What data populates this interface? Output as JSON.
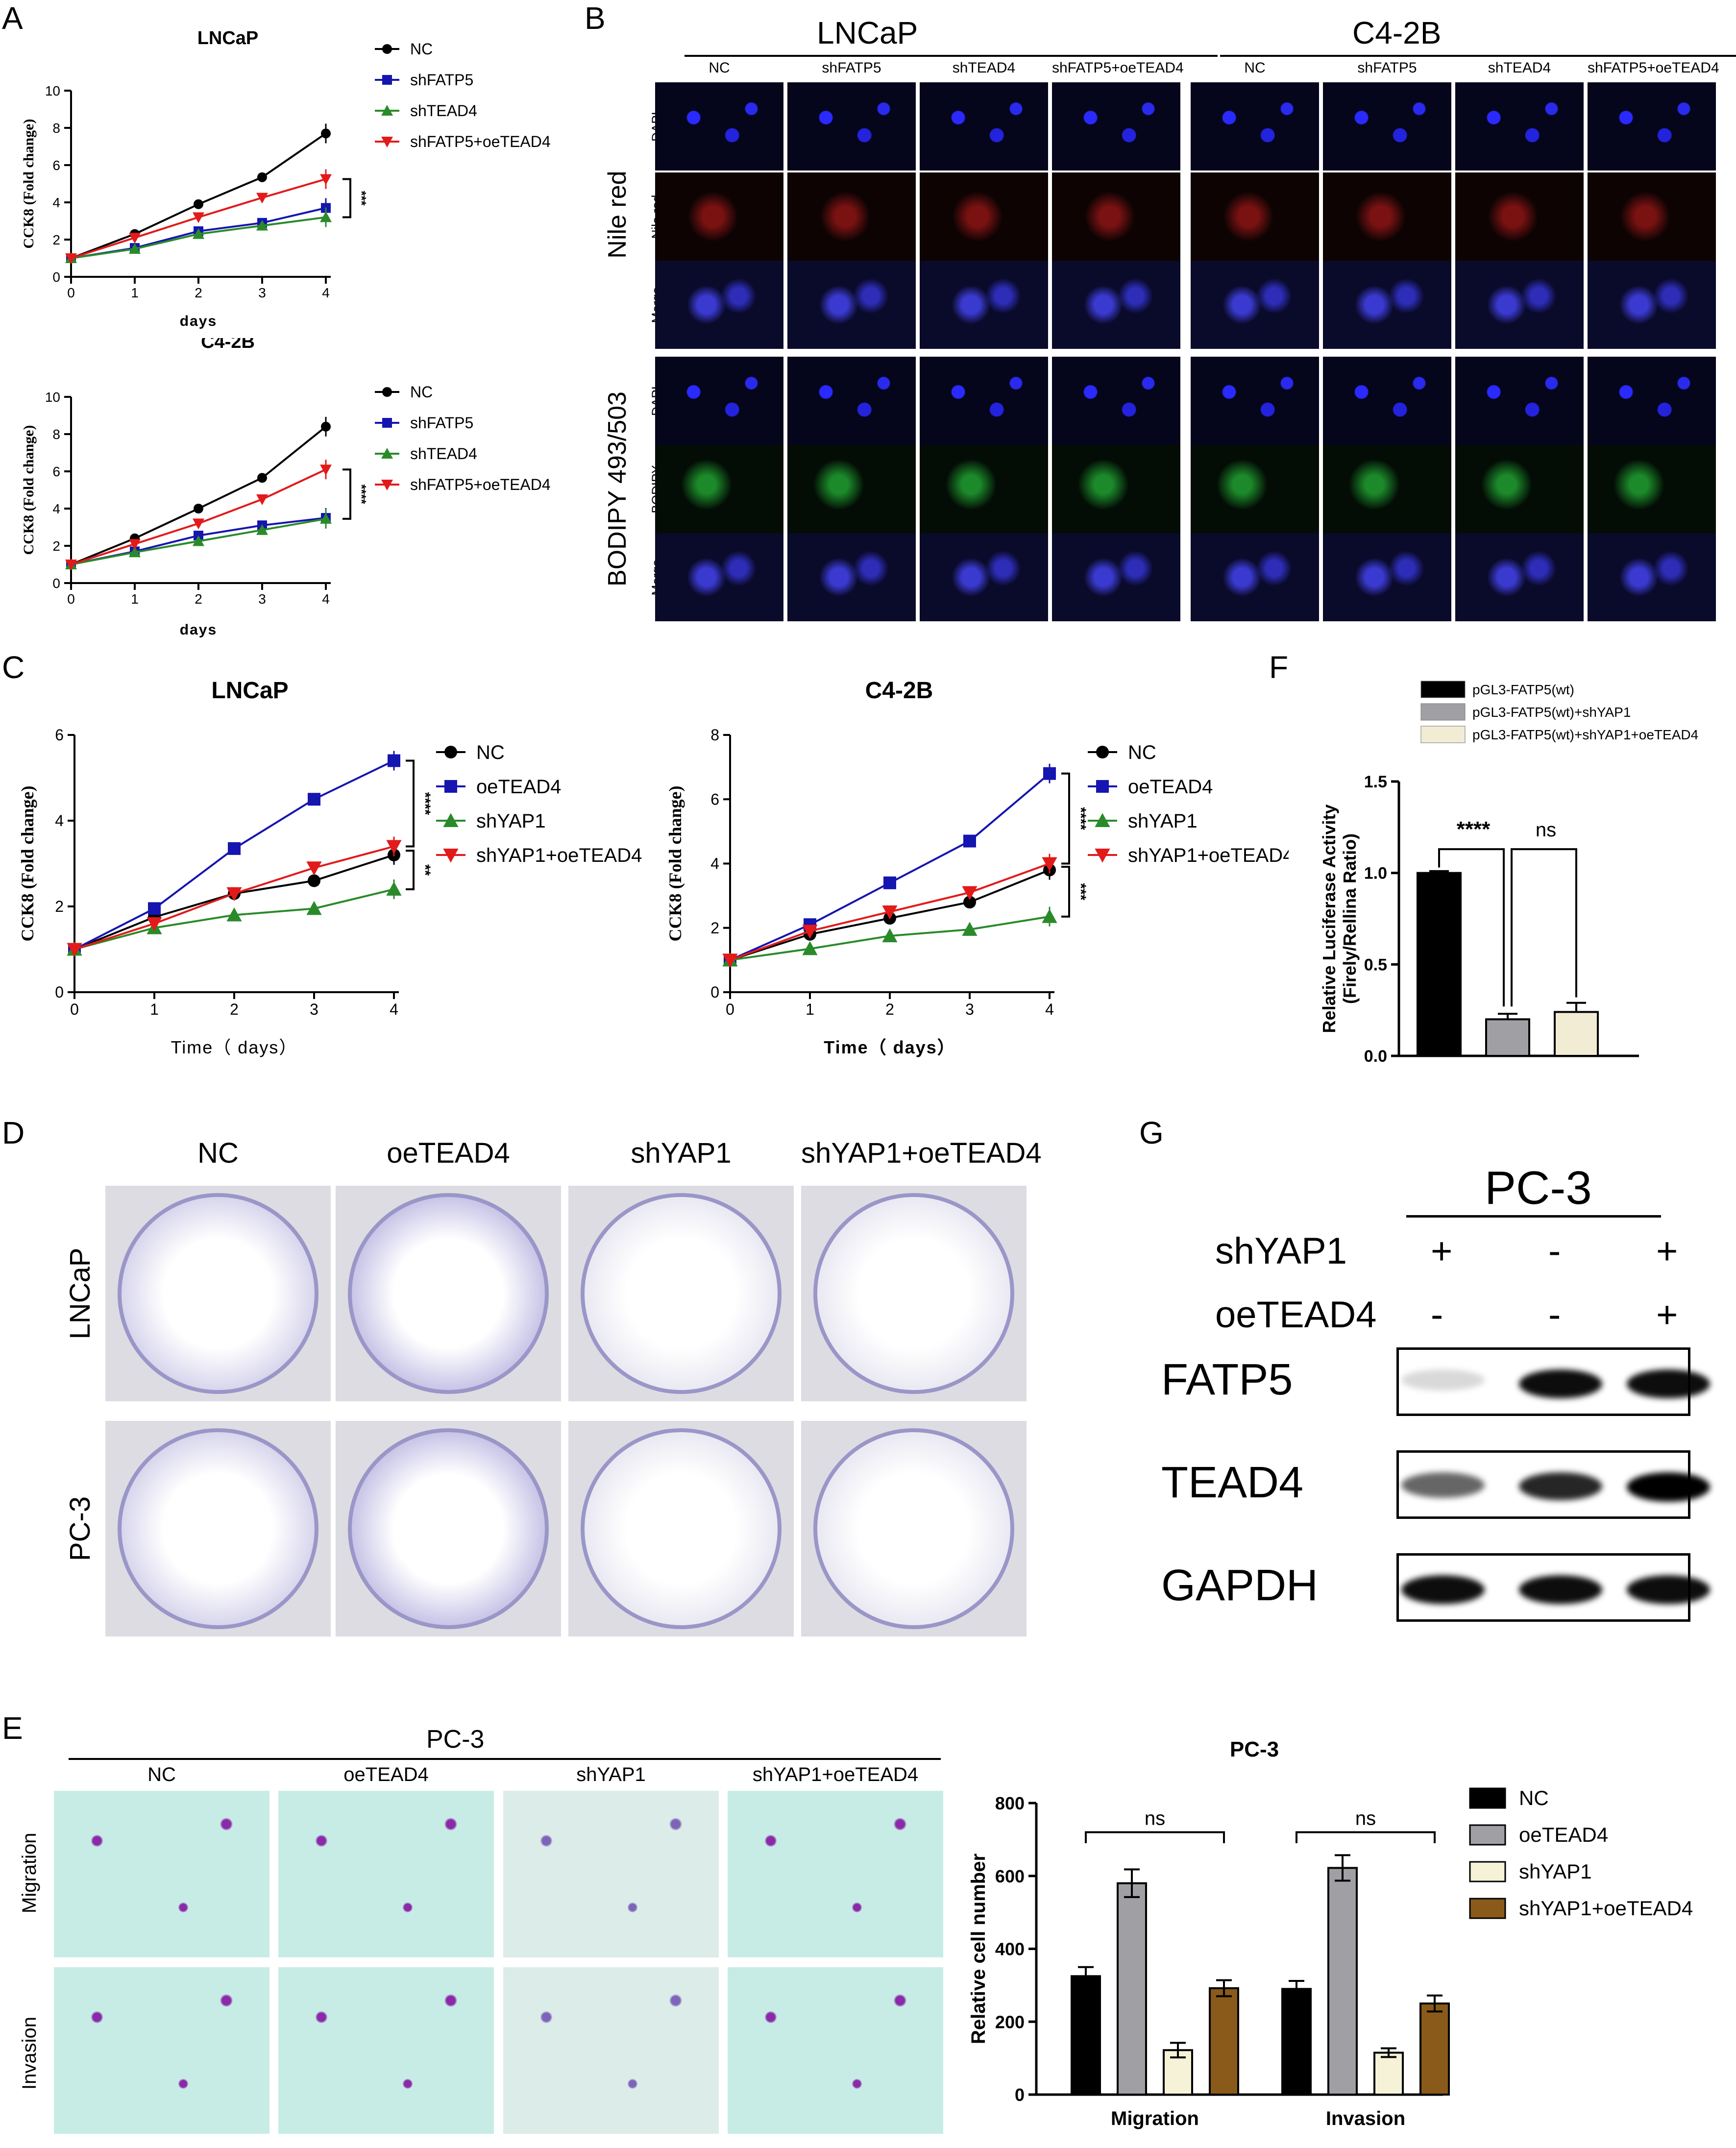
{
  "panels": {
    "A": "A",
    "B": "B",
    "C": "C",
    "D": "D",
    "E": "E",
    "F": "F",
    "G": "G"
  },
  "panelA": {
    "charts": [
      {
        "title": "LNCaP",
        "xlabel": "days",
        "ylabel": "CCK8 (Fold change)",
        "ylim": [
          0,
          10
        ],
        "yticks": [
          "0",
          "2",
          "4",
          "6",
          "8",
          "10"
        ],
        "xticks": [
          "0",
          "1",
          "2",
          "3",
          "4"
        ],
        "sig": "***",
        "series": [
          {
            "name": "NC",
            "color": "#000000",
            "marker": "circle",
            "values": [
              1,
              2.3,
              3.9,
              5.35,
              7.7
            ]
          },
          {
            "name": "shFATP5",
            "color": "#1515b0",
            "marker": "square",
            "values": [
              1,
              1.55,
              2.45,
              2.9,
              3.7
            ]
          },
          {
            "name": "shTEAD4",
            "color": "#2a8a2a",
            "marker": "triangle",
            "values": [
              1,
              1.5,
              2.3,
              2.75,
              3.2
            ]
          },
          {
            "name": "shFATP5+oeTEAD4",
            "color": "#e21a1a",
            "marker": "triangle-down",
            "values": [
              1,
              2.1,
              3.2,
              4.25,
              5.25
            ]
          }
        ]
      },
      {
        "title": "C4-2B",
        "xlabel": "days",
        "ylabel": "CCK8 (Fold change)",
        "ylim": [
          0,
          10
        ],
        "yticks": [
          "0",
          "2",
          "4",
          "6",
          "8",
          "10"
        ],
        "xticks": [
          "0",
          "1",
          "2",
          "3",
          "4"
        ],
        "sig": "****",
        "series": [
          {
            "name": "NC",
            "color": "#000000",
            "marker": "circle",
            "values": [
              1,
              2.4,
              4.0,
              5.65,
              8.4
            ]
          },
          {
            "name": "shFATP5",
            "color": "#1515b0",
            "marker": "square",
            "values": [
              1,
              1.7,
              2.55,
              3.1,
              3.5
            ]
          },
          {
            "name": "shTEAD4",
            "color": "#2a8a2a",
            "marker": "triangle",
            "values": [
              1,
              1.65,
              2.25,
              2.85,
              3.45
            ]
          },
          {
            "name": "shFATP5+oeTEAD4",
            "color": "#e21a1a",
            "marker": "triangle-down",
            "values": [
              1,
              2.1,
              3.2,
              4.5,
              6.1
            ]
          }
        ]
      }
    ]
  },
  "panelB": {
    "groups": [
      "LNCaP",
      "C4-2B"
    ],
    "columns": [
      "NC",
      "shFATP5",
      "shTEAD4",
      "shFATP5+oeTEAD4"
    ],
    "sections": [
      {
        "title": "Nile red",
        "rows": [
          "DAPI",
          "Nile red",
          "Merge"
        ]
      },
      {
        "title": "BODIPY 493/503",
        "rows": [
          "DAPI",
          "BODIPY",
          "Merge"
        ]
      }
    ]
  },
  "panelC": {
    "charts": [
      {
        "title": "LNCaP",
        "xlabel": "Time（ days）",
        "ylabel": "CCK8 (Fold change)",
        "ylim": [
          0,
          6
        ],
        "yticks": [
          "0",
          "2",
          "4",
          "6"
        ],
        "xticks": [
          "0",
          "1",
          "2",
          "3",
          "4"
        ],
        "sig1": "****",
        "sig2": "**",
        "series": [
          {
            "name": "NC",
            "color": "#000000",
            "marker": "circle",
            "values": [
              1,
              1.75,
              2.3,
              2.6,
              3.2
            ]
          },
          {
            "name": "oeTEAD4",
            "color": "#1515b0",
            "marker": "square",
            "values": [
              1,
              1.95,
              3.35,
              4.5,
              5.4
            ]
          },
          {
            "name": "shYAP1",
            "color": "#2a8a2a",
            "marker": "triangle",
            "values": [
              1,
              1.5,
              1.8,
              1.95,
              2.4
            ]
          },
          {
            "name": "shYAP1+oeTEAD4",
            "color": "#e21a1a",
            "marker": "triangle-down",
            "values": [
              1,
              1.6,
              2.3,
              2.9,
              3.4
            ]
          }
        ]
      },
      {
        "title": "C4-2B",
        "xlabel": "Time（ days）",
        "ylabel": "CCK8 (Fold change)",
        "ylim": [
          0,
          8
        ],
        "yticks": [
          "0",
          "2",
          "4",
          "6",
          "8"
        ],
        "xticks": [
          "0",
          "1",
          "2",
          "3",
          "4"
        ],
        "sig1": "****",
        "sig2": "***",
        "series": [
          {
            "name": "NC",
            "color": "#000000",
            "marker": "circle",
            "values": [
              1,
              1.8,
              2.3,
              2.8,
              3.8
            ]
          },
          {
            "name": "oeTEAD4",
            "color": "#1515b0",
            "marker": "square",
            "values": [
              1,
              2.1,
              3.4,
              4.7,
              6.8
            ]
          },
          {
            "name": "shYAP1",
            "color": "#2a8a2a",
            "marker": "triangle",
            "values": [
              1,
              1.35,
              1.75,
              1.95,
              2.35
            ]
          },
          {
            "name": "shYAP1+oeTEAD4",
            "color": "#e21a1a",
            "marker": "triangle-down",
            "values": [
              1,
              1.9,
              2.5,
              3.1,
              4.0
            ]
          }
        ]
      }
    ]
  },
  "panelD": {
    "columns": [
      "NC",
      "oeTEAD4",
      "shYAP1",
      "shYAP1+oeTEAD4"
    ],
    "rows": [
      "LNCaP",
      "PC-3"
    ]
  },
  "panelE": {
    "group": "PC-3",
    "columns": [
      "NC",
      "oeTEAD4",
      "shYAP1",
      "shYAP1+oeTEAD4"
    ],
    "rows": [
      "Migration",
      "Invasion"
    ]
  },
  "chart_data": [
    {
      "type": "bar",
      "title": "",
      "ylabel": "Relative Luciferase Activity (Firely/Rellina Ratio)",
      "ylim": [
        0,
        1.5
      ],
      "yticks": [
        "0.0",
        "0.5",
        "1.0",
        "1.5"
      ],
      "categories": [
        "pGL3-FATP5(wt)",
        "pGL3-FATP5(wt)+shYAP1",
        "pGL3-FATP5(wt)+shYAP1+oeTEAD4"
      ],
      "values": [
        1.0,
        0.2,
        0.24
      ],
      "errors": [
        0.01,
        0.03,
        0.05
      ],
      "colors": [
        "#000000",
        "#a0a0a4",
        "#f2ecd4"
      ],
      "sig": [
        "****",
        "ns"
      ]
    },
    {
      "type": "bar",
      "title": "PC-3",
      "ylabel": "Relative cell number",
      "ylim": [
        0,
        800
      ],
      "yticks": [
        "0",
        "200",
        "400",
        "600",
        "800"
      ],
      "categories": [
        "Migration",
        "Invasion"
      ],
      "series": [
        {
          "name": "NC",
          "color": "#000000",
          "values": [
            325,
            290
          ],
          "errors": [
            25,
            22
          ]
        },
        {
          "name": "oeTEAD4",
          "color": "#a0a0a4",
          "values": [
            580,
            622
          ],
          "errors": [
            38,
            35
          ]
        },
        {
          "name": "shYAP1",
          "color": "#f5f2d8",
          "values": [
            122,
            115
          ],
          "errors": [
            20,
            12
          ]
        },
        {
          "name": "shYAP1+oeTEAD4",
          "color": "#8a5a1a",
          "values": [
            292,
            250
          ],
          "errors": [
            22,
            22
          ]
        }
      ],
      "sig": [
        "ns",
        "ns"
      ]
    }
  ],
  "panelG": {
    "title": "PC-3",
    "rows": [
      {
        "label": "shYAP1",
        "marks": [
          "+",
          "-",
          "+"
        ]
      },
      {
        "label": "oeTEAD4",
        "marks": [
          "-",
          "-",
          "+"
        ]
      }
    ],
    "blots": [
      "FATP5",
      "TEAD4",
      "GAPDH"
    ]
  }
}
